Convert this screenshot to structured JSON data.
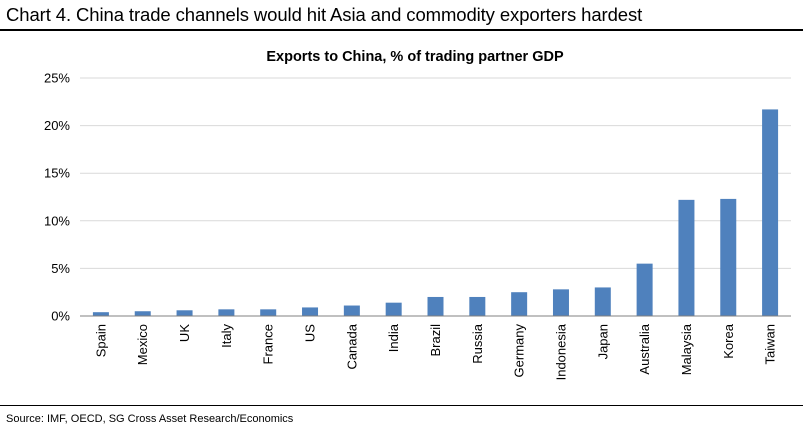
{
  "heading": "Chart 4. China trade channels would hit Asia and commodity exporters hardest",
  "source": "Source: IMF, OECD, SG Cross Asset Research/Economics",
  "chart_data": {
    "type": "bar",
    "title": "Exports to China, % of trading partner GDP",
    "xlabel": "",
    "ylabel": "",
    "categories": [
      "Spain",
      "Mexico",
      "UK",
      "Italy",
      "France",
      "US",
      "Canada",
      "India",
      "Brazil",
      "Russia",
      "Germany",
      "Indonesia",
      "Japan",
      "Australia",
      "Malaysia",
      "Korea",
      "Taiwan"
    ],
    "values": [
      0.4,
      0.5,
      0.6,
      0.7,
      0.7,
      0.9,
      1.1,
      1.4,
      2.0,
      2.0,
      2.5,
      2.8,
      3.0,
      5.5,
      12.2,
      12.3,
      21.7
    ],
    "ylim": [
      0,
      25
    ],
    "yticks": [
      0,
      5,
      10,
      15,
      20,
      25
    ],
    "ytick_labels": [
      "0%",
      "5%",
      "10%",
      "15%",
      "20%",
      "25%"
    ],
    "bar_color": "#4f81bd",
    "grid": true,
    "legend": "none"
  }
}
